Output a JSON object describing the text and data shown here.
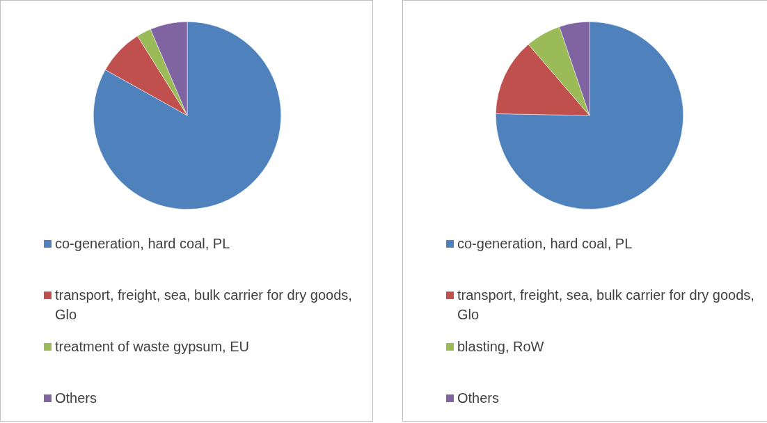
{
  "chart_data": [
    {
      "type": "pie",
      "categories": [
        "co-generation, hard coal, PL",
        "transport, freight, sea, bulk carrier for dry goods, Glo",
        "treatment of waste gypsum,  EU",
        "Others"
      ],
      "values": [
        83.1,
        8.0,
        2.5,
        6.4
      ],
      "colors": [
        "#4f81bd",
        "#c0504d",
        "#9bbb59",
        "#8064a2"
      ],
      "legend": "bottom"
    },
    {
      "type": "pie",
      "categories": [
        "co-generation, hard coal, PL",
        "transport, freight, sea, bulk carrier for dry goods, Glo",
        "blasting, RoW",
        "Others"
      ],
      "values": [
        75.3,
        13.4,
        6.1,
        5.2
      ],
      "colors": [
        "#4f81bd",
        "#c0504d",
        "#9bbb59",
        "#8064a2"
      ],
      "legend": "bottom"
    }
  ]
}
